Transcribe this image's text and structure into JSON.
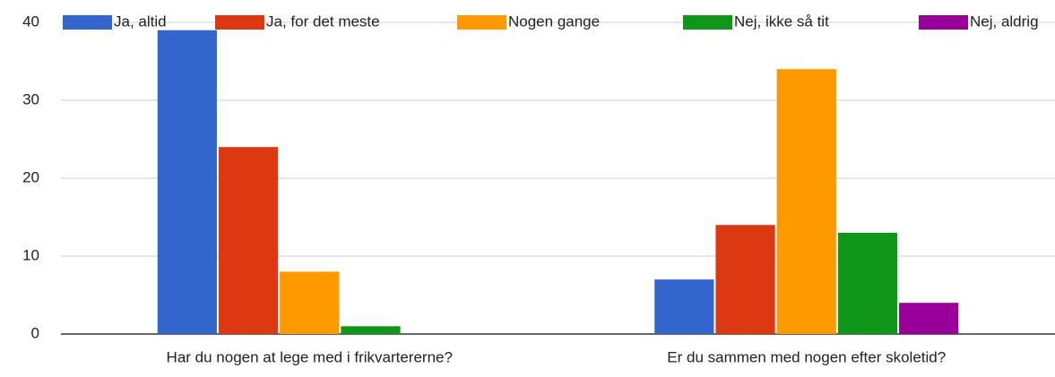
{
  "chart_data": {
    "type": "bar",
    "categories": [
      "Har du nogen at lege med i frikvartererne?",
      "Er du sammen med nogen efter skoletid?"
    ],
    "series": [
      {
        "name": "Ja, altid",
        "color": "#3366cc",
        "values": [
          39,
          7
        ]
      },
      {
        "name": "Ja, for det meste",
        "color": "#dc3912",
        "values": [
          24,
          14
        ]
      },
      {
        "name": "Nogen gange",
        "color": "#ff9900",
        "values": [
          8,
          34
        ]
      },
      {
        "name": "Nej, ikke så tit",
        "color": "#109618",
        "values": [
          1,
          13
        ]
      },
      {
        "name": "Nej, aldrig",
        "color": "#990099",
        "values": [
          0,
          4
        ]
      }
    ],
    "ylim": [
      0,
      40
    ],
    "yticks": [
      0,
      10,
      20,
      30,
      40
    ],
    "grid": true,
    "legend": "top"
  }
}
